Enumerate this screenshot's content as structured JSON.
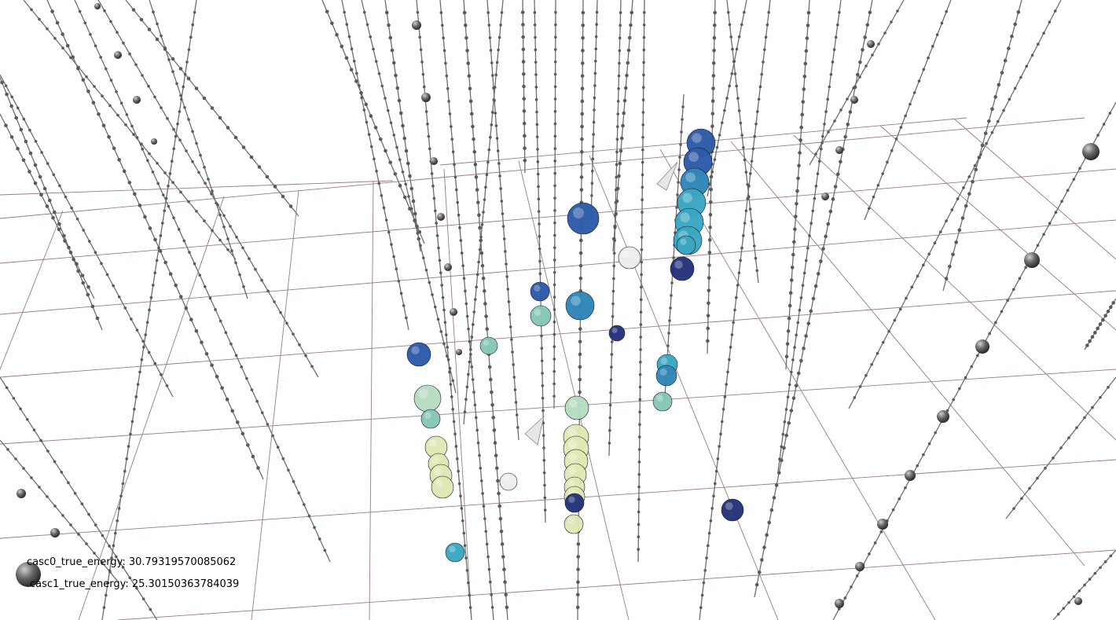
{
  "overlay": {
    "casc0_label": "casc0_true_energy: 30.79319570085062",
    "casc1_label": "casc1_true_energy: 25.30150363784039"
  },
  "colors": {
    "background": "#ffffff",
    "grid": "#9a7a86",
    "string": "#6e6e6e",
    "dom": "#5a5a5a",
    "hit_palette": [
      "#25337a",
      "#2d5aa8",
      "#2f86b8",
      "#3aa6c2",
      "#86c7b8",
      "#b7dcc0",
      "#dfe8b4",
      "#ededed"
    ]
  },
  "icons": [
    "sphere-hit-icon",
    "dom-sphere-icon",
    "cascade-cone-icon"
  ]
}
